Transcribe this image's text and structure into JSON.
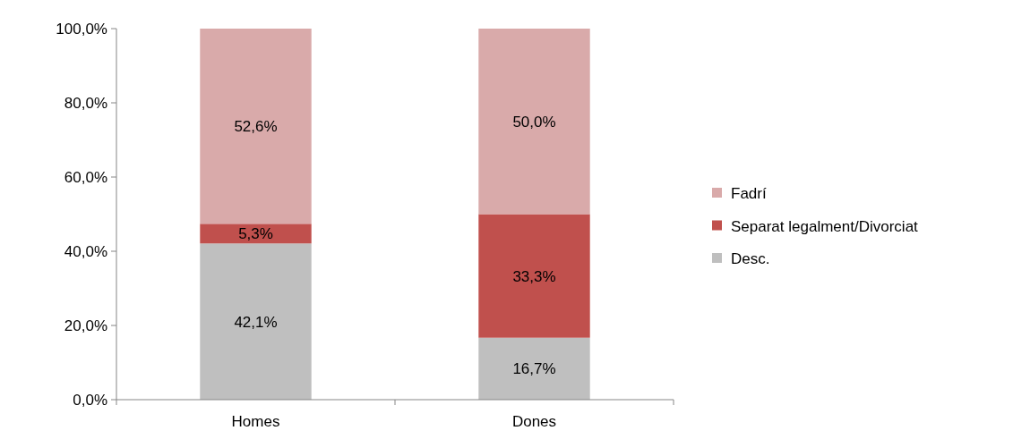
{
  "chart_data": {
    "type": "bar",
    "stacked": true,
    "categories": [
      "Homes",
      "Dones"
    ],
    "series": [
      {
        "name": "Desc.",
        "color": "#bfbfbf",
        "values": [
          42.1,
          16.7
        ],
        "value_labels": [
          "42,1%",
          "16,7%"
        ]
      },
      {
        "name": "Separat legalment/Divorciat",
        "color": "#c0504d",
        "values": [
          5.3,
          33.3
        ],
        "value_labels": [
          "5,3%",
          "33,3%"
        ]
      },
      {
        "name": "Fadrí",
        "color": "#d9aaaa",
        "values": [
          52.6,
          50.0
        ],
        "value_labels": [
          "52,6%",
          "50,0%"
        ]
      }
    ],
    "ylim": [
      0,
      100
    ],
    "yticks": [
      {
        "value": 0,
        "label": "0,0%"
      },
      {
        "value": 20,
        "label": "20,0%"
      },
      {
        "value": 40,
        "label": "40,0%"
      },
      {
        "value": 60,
        "label": "60,0%"
      },
      {
        "value": 80,
        "label": "80,0%"
      },
      {
        "value": 100,
        "label": "100,0%"
      }
    ],
    "grid": false,
    "legend": "right"
  }
}
